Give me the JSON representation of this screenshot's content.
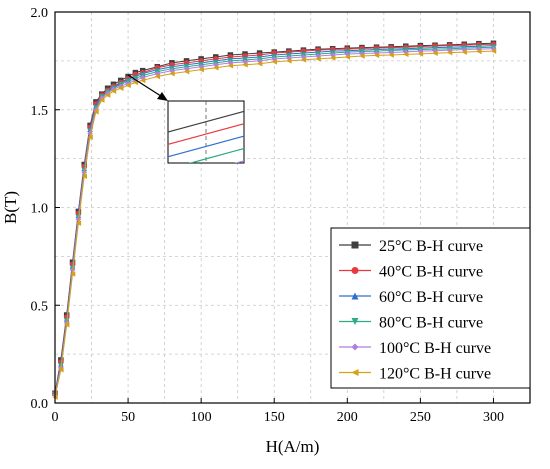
{
  "chart_data": {
    "type": "line",
    "xlabel": "H(A/m)",
    "ylabel": "B(T)",
    "xlim": [
      0,
      325
    ],
    "ylim": [
      0,
      2.0
    ],
    "xticks": [
      0,
      50,
      100,
      150,
      200,
      250,
      300
    ],
    "yticks": [
      0.0,
      0.5,
      1.0,
      1.5,
      2.0
    ],
    "xtick_labels": [
      "0",
      "50",
      "100",
      "150",
      "200",
      "250",
      "300"
    ],
    "ytick_labels": [
      "0.0",
      "0.5",
      "1.0",
      "1.5",
      "2.0"
    ],
    "grid": true,
    "legend_position": "bottom-right",
    "series": [
      {
        "name": "25°C B-H curve",
        "color": "#3f3f3f",
        "marker": "square",
        "x": [
          0,
          4,
          8,
          12,
          16,
          20,
          24,
          28,
          32,
          36,
          40,
          45,
          50,
          55,
          60,
          70,
          80,
          90,
          100,
          110,
          120,
          130,
          140,
          150,
          160,
          170,
          180,
          190,
          200,
          210,
          220,
          230,
          240,
          250,
          260,
          270,
          280,
          290,
          300
        ],
        "y": [
          0.05,
          0.22,
          0.45,
          0.72,
          0.98,
          1.22,
          1.42,
          1.54,
          1.58,
          1.61,
          1.63,
          1.65,
          1.67,
          1.69,
          1.7,
          1.72,
          1.74,
          1.75,
          1.76,
          1.77,
          1.78,
          1.785,
          1.79,
          1.795,
          1.8,
          1.805,
          1.81,
          1.812,
          1.815,
          1.818,
          1.82,
          1.822,
          1.825,
          1.828,
          1.83,
          1.832,
          1.835,
          1.838,
          1.84
        ]
      },
      {
        "name": "40°C B-H curve",
        "color": "#e8393f",
        "marker": "circle",
        "x": [
          0,
          4,
          8,
          12,
          16,
          20,
          24,
          28,
          32,
          36,
          40,
          45,
          50,
          55,
          60,
          70,
          80,
          90,
          100,
          110,
          120,
          130,
          140,
          150,
          160,
          170,
          180,
          190,
          200,
          210,
          220,
          230,
          240,
          250,
          260,
          270,
          280,
          290,
          300
        ],
        "y": [
          0.05,
          0.21,
          0.44,
          0.71,
          0.97,
          1.21,
          1.41,
          1.53,
          1.575,
          1.6,
          1.62,
          1.64,
          1.66,
          1.68,
          1.69,
          1.715,
          1.73,
          1.74,
          1.75,
          1.76,
          1.77,
          1.775,
          1.78,
          1.79,
          1.795,
          1.8,
          1.805,
          1.808,
          1.81,
          1.813,
          1.816,
          1.818,
          1.82,
          1.823,
          1.826,
          1.828,
          1.83,
          1.833,
          1.835
        ]
      },
      {
        "name": "60°C B-H curve",
        "color": "#2d6fcf",
        "marker": "triangle-up",
        "x": [
          0,
          4,
          8,
          12,
          16,
          20,
          24,
          28,
          32,
          36,
          40,
          45,
          50,
          55,
          60,
          70,
          80,
          90,
          100,
          110,
          120,
          130,
          140,
          150,
          160,
          170,
          180,
          190,
          200,
          210,
          220,
          230,
          240,
          250,
          260,
          270,
          280,
          290,
          300
        ],
        "y": [
          0.05,
          0.2,
          0.43,
          0.7,
          0.96,
          1.2,
          1.4,
          1.52,
          1.57,
          1.595,
          1.615,
          1.635,
          1.655,
          1.67,
          1.685,
          1.705,
          1.72,
          1.73,
          1.74,
          1.75,
          1.76,
          1.765,
          1.77,
          1.78,
          1.785,
          1.79,
          1.795,
          1.8,
          1.802,
          1.805,
          1.808,
          1.81,
          1.812,
          1.815,
          1.818,
          1.82,
          1.822,
          1.825,
          1.828
        ]
      },
      {
        "name": "80°C B-H curve",
        "color": "#2eaa86",
        "marker": "triangle-down",
        "x": [
          0,
          4,
          8,
          12,
          16,
          20,
          24,
          28,
          32,
          36,
          40,
          45,
          50,
          55,
          60,
          70,
          80,
          90,
          100,
          110,
          120,
          130,
          140,
          150,
          160,
          170,
          180,
          190,
          200,
          210,
          220,
          230,
          240,
          250,
          260,
          270,
          280,
          290,
          300
        ],
        "y": [
          0.04,
          0.19,
          0.42,
          0.69,
          0.95,
          1.19,
          1.39,
          1.51,
          1.565,
          1.59,
          1.61,
          1.63,
          1.645,
          1.66,
          1.675,
          1.695,
          1.71,
          1.72,
          1.73,
          1.74,
          1.75,
          1.755,
          1.76,
          1.77,
          1.775,
          1.78,
          1.785,
          1.79,
          1.795,
          1.798,
          1.8,
          1.803,
          1.806,
          1.808,
          1.81,
          1.812,
          1.815,
          1.818,
          1.82
        ]
      },
      {
        "name": "100°C B-H curve",
        "color": "#b07fe0",
        "marker": "diamond",
        "x": [
          0,
          4,
          8,
          12,
          16,
          20,
          24,
          28,
          32,
          36,
          40,
          45,
          50,
          55,
          60,
          70,
          80,
          90,
          100,
          110,
          120,
          130,
          140,
          150,
          160,
          170,
          180,
          190,
          200,
          210,
          220,
          230,
          240,
          250,
          260,
          270,
          280,
          290,
          300
        ],
        "y": [
          0.04,
          0.18,
          0.41,
          0.68,
          0.94,
          1.18,
          1.38,
          1.5,
          1.56,
          1.585,
          1.605,
          1.62,
          1.635,
          1.65,
          1.665,
          1.685,
          1.7,
          1.71,
          1.72,
          1.73,
          1.74,
          1.745,
          1.75,
          1.76,
          1.765,
          1.77,
          1.775,
          1.78,
          1.785,
          1.788,
          1.79,
          1.793,
          1.796,
          1.8,
          1.802,
          1.805,
          1.808,
          1.81,
          1.812
        ]
      },
      {
        "name": "120°C B-H curve",
        "color": "#d6a019",
        "marker": "triangle-left",
        "x": [
          0,
          4,
          8,
          12,
          16,
          20,
          24,
          28,
          32,
          36,
          40,
          45,
          50,
          55,
          60,
          70,
          80,
          90,
          100,
          110,
          120,
          130,
          140,
          150,
          160,
          170,
          180,
          190,
          200,
          210,
          220,
          230,
          240,
          250,
          260,
          270,
          280,
          290,
          300
        ],
        "y": [
          0.03,
          0.17,
          0.4,
          0.66,
          0.92,
          1.16,
          1.36,
          1.49,
          1.55,
          1.575,
          1.595,
          1.61,
          1.625,
          1.64,
          1.65,
          1.67,
          1.685,
          1.695,
          1.705,
          1.715,
          1.725,
          1.73,
          1.735,
          1.745,
          1.75,
          1.755,
          1.76,
          1.765,
          1.77,
          1.775,
          1.778,
          1.78,
          1.783,
          1.786,
          1.789,
          1.792,
          1.795,
          1.798,
          1.8
        ]
      }
    ],
    "inset": {
      "xlim": [
        85,
        115
      ],
      "ylim": [
        1.7,
        1.79
      ]
    }
  }
}
